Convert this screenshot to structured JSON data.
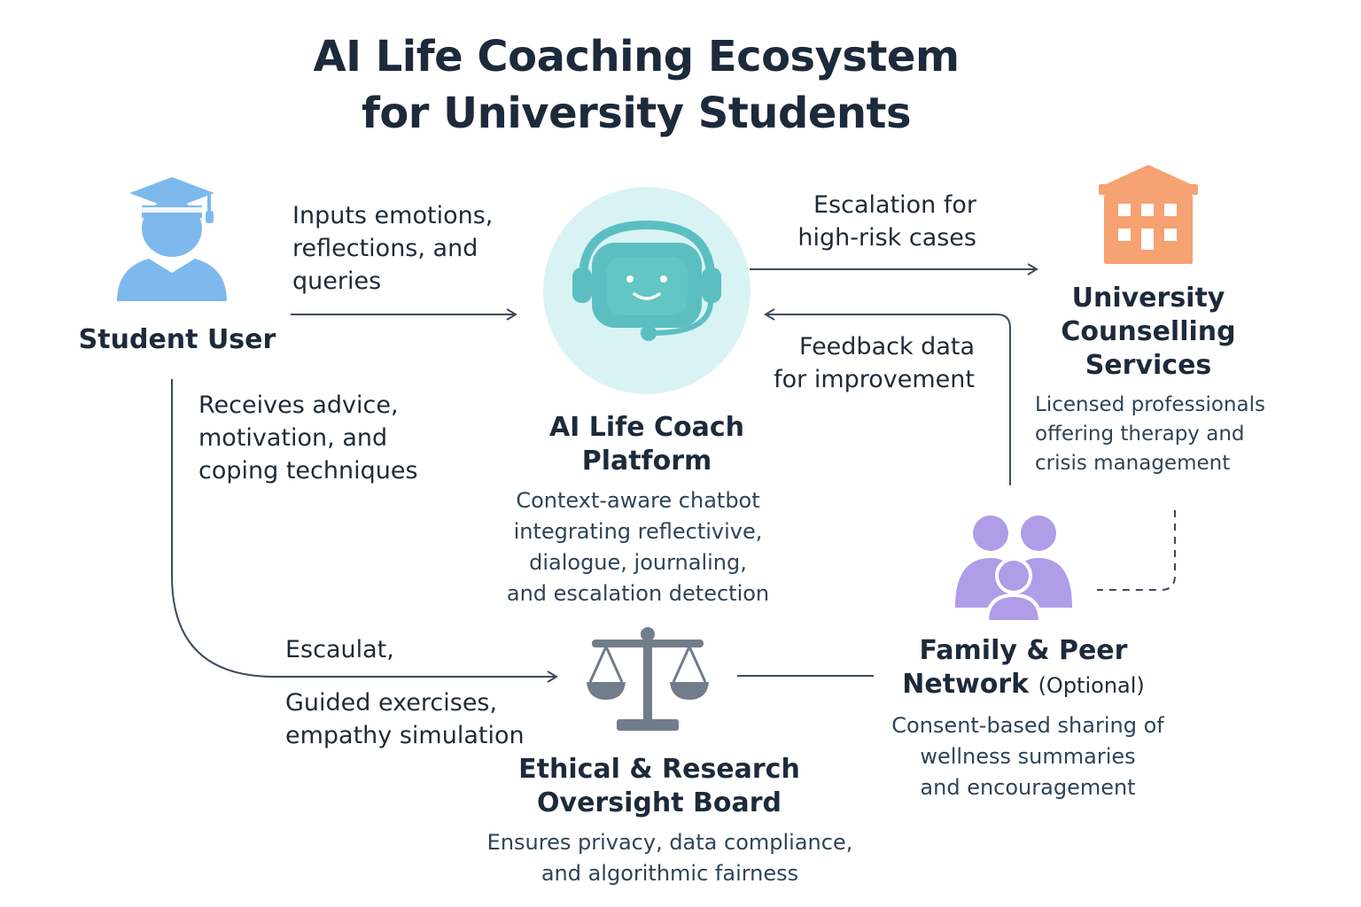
{
  "title": {
    "line1": "AI Life Coaching Ecosystem",
    "line2": "for University Students"
  },
  "nodes": {
    "student": {
      "label": "Student User",
      "icon": "graduate-student-icon",
      "color": "#7db9ec"
    },
    "platform": {
      "label_line1": "AI Life Coach",
      "label_line2": "Platform",
      "desc_line1": "Context-aware chatbot",
      "desc_line2": "integrating reflectivive,",
      "desc_line3": "dialogue, journaling,",
      "desc_line4": "and escalation detection",
      "icon": "robot-headset-icon",
      "color": "#5bbfc1"
    },
    "counselling": {
      "label_line1": "University",
      "label_line2": "Counselling",
      "label_line3": "Services",
      "desc_line1": "Licensed professionals",
      "desc_line2": "offering therapy and",
      "desc_line3": "crisis management",
      "icon": "building-icon",
      "color": "#f6a272"
    },
    "family": {
      "label_line1": "Family & Peer",
      "label_line2": "Network",
      "label_optional": "(Optional)",
      "desc_line1": "Consent-based sharing of",
      "desc_line2": "wellness summaries",
      "desc_line3": "and encouragement",
      "icon": "people-group-icon",
      "color": "#b19ce8"
    },
    "ethics": {
      "label_line1": "Ethical & Research",
      "label_line2": "Oversight Board",
      "desc_line1": "Ensures privacy, data compliance,",
      "desc_line2": "and algorithmic fairness",
      "icon": "scales-icon",
      "color": "#717d8a"
    }
  },
  "edges": {
    "inputs": {
      "line1": "Inputs emotions,",
      "line2": "reflections, and",
      "line3": "queries"
    },
    "receives": {
      "line1": "Receives advice,",
      "line2": "motivation, and",
      "line3": "coping techniques"
    },
    "escalation": {
      "line1": "Escalation for",
      "line2": "high-risk cases"
    },
    "feedback": {
      "line1": "Feedback data",
      "line2": "for improvement"
    },
    "escaulat": {
      "line1": "Escaulat,"
    },
    "guided": {
      "line1": "Guided exercises,",
      "line2": "empathy simulation"
    }
  },
  "colors": {
    "arrow": "#3d4a5c",
    "platform_halo": "#d9f3f4"
  }
}
